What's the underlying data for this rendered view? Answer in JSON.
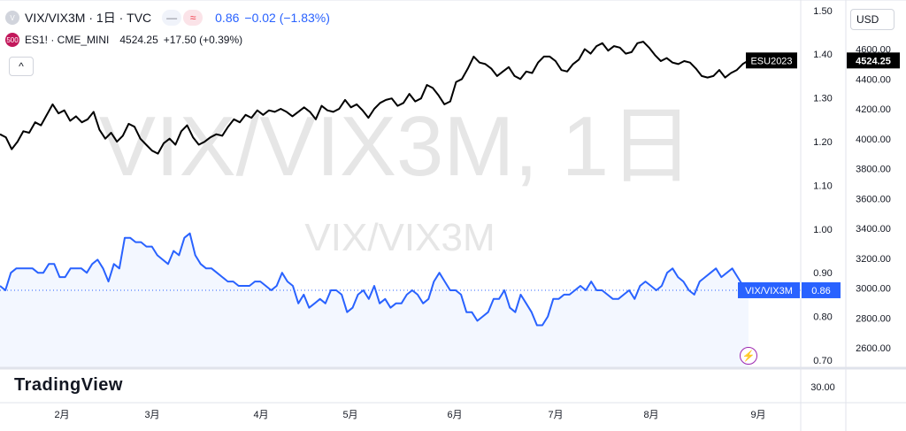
{
  "header": {
    "symbol_title": "VIX/VIX3M · 1日 · TVC",
    "value": "0.86",
    "change": "−0.02 (−1.83%)",
    "pill_left": "—",
    "pill_right": "≈",
    "circle_letter": "V",
    "value_color": "#2962ff"
  },
  "overlay": {
    "badge": "500",
    "label": "ES1! · CME_MINI",
    "price": "4524.25",
    "change": "+17.50 (+0.39%)"
  },
  "controls": {
    "collapse_icon": "^",
    "currency": "USD",
    "flash_icon": "⚡"
  },
  "watermark": {
    "big": "VIX/VIX3M, 1日",
    "small": "VIX/VIX3M"
  },
  "logo_text": "TradingView",
  "chart_data": {
    "type": "line",
    "x_ticks": [
      "2月",
      "3月",
      "4月",
      "5月",
      "6月",
      "7月",
      "8月",
      "9月"
    ],
    "left_axis": {
      "ticks": [
        0.7,
        0.8,
        0.9,
        1.0,
        1.1,
        1.2,
        1.3,
        1.4,
        1.5
      ],
      "lower_pane_tick": "30.00"
    },
    "right_axis": {
      "ticks": [
        2600,
        2800,
        3000,
        3200,
        3400,
        3600,
        3800,
        4000,
        4200,
        4400,
        4600
      ]
    },
    "series": [
      {
        "name": "ESU2023",
        "axis": "right",
        "color": "#000000",
        "last_label": "4524.25",
        "values": [
          4030,
          4010,
          3930,
          3980,
          4050,
          4040,
          4110,
          4090,
          4160,
          4230,
          4170,
          4190,
          4120,
          4150,
          4110,
          4130,
          4180,
          4060,
          4000,
          4040,
          3980,
          4020,
          4100,
          4080,
          4000,
          3960,
          3920,
          3900,
          3970,
          4000,
          3960,
          4050,
          4090,
          4010,
          3960,
          3980,
          4010,
          4030,
          4020,
          4080,
          4130,
          4110,
          4160,
          4140,
          4190,
          4160,
          4190,
          4180,
          4200,
          4180,
          4150,
          4180,
          4210,
          4180,
          4130,
          4220,
          4190,
          4180,
          4200,
          4260,
          4210,
          4230,
          4190,
          4140,
          4200,
          4240,
          4260,
          4270,
          4220,
          4240,
          4300,
          4250,
          4270,
          4360,
          4340,
          4290,
          4230,
          4250,
          4380,
          4400,
          4470,
          4550,
          4510,
          4500,
          4470,
          4420,
          4450,
          4480,
          4420,
          4400,
          4450,
          4440,
          4510,
          4550,
          4550,
          4520,
          4460,
          4450,
          4500,
          4530,
          4600,
          4570,
          4620,
          4640,
          4590,
          4620,
          4610,
          4570,
          4580,
          4640,
          4650,
          4610,
          4560,
          4520,
          4540,
          4510,
          4500,
          4520,
          4510,
          4470,
          4420,
          4410,
          4420,
          4460,
          4410,
          4440,
          4460,
          4500,
          4524
        ]
      },
      {
        "name": "VIX/VIX3M",
        "axis": "left",
        "color": "#2962ff",
        "last_label": "0.86",
        "values": [
          0.87,
          0.86,
          0.9,
          0.91,
          0.91,
          0.91,
          0.91,
          0.9,
          0.9,
          0.92,
          0.92,
          0.89,
          0.89,
          0.91,
          0.91,
          0.91,
          0.9,
          0.92,
          0.93,
          0.91,
          0.88,
          0.92,
          0.91,
          0.98,
          0.98,
          0.97,
          0.97,
          0.96,
          0.96,
          0.94,
          0.93,
          0.92,
          0.95,
          0.94,
          0.98,
          0.99,
          0.94,
          0.92,
          0.91,
          0.91,
          0.9,
          0.89,
          0.88,
          0.88,
          0.87,
          0.87,
          0.87,
          0.88,
          0.88,
          0.87,
          0.86,
          0.87,
          0.9,
          0.88,
          0.87,
          0.83,
          0.85,
          0.82,
          0.83,
          0.84,
          0.83,
          0.86,
          0.86,
          0.85,
          0.81,
          0.82,
          0.85,
          0.86,
          0.84,
          0.87,
          0.83,
          0.84,
          0.82,
          0.83,
          0.83,
          0.85,
          0.86,
          0.85,
          0.83,
          0.84,
          0.88,
          0.9,
          0.88,
          0.86,
          0.86,
          0.85,
          0.81,
          0.81,
          0.79,
          0.8,
          0.81,
          0.84,
          0.84,
          0.86,
          0.82,
          0.81,
          0.85,
          0.83,
          0.81,
          0.78,
          0.78,
          0.8,
          0.84,
          0.84,
          0.85,
          0.85,
          0.86,
          0.87,
          0.86,
          0.88,
          0.86,
          0.86,
          0.85,
          0.84,
          0.84,
          0.85,
          0.86,
          0.84,
          0.87,
          0.88,
          0.87,
          0.86,
          0.87,
          0.9,
          0.91,
          0.89,
          0.88,
          0.86,
          0.85,
          0.88,
          0.89,
          0.9,
          0.91,
          0.89,
          0.9,
          0.91,
          0.89,
          0.87,
          0.86
        ]
      }
    ],
    "legend": "right-edge labels",
    "grid": false
  }
}
